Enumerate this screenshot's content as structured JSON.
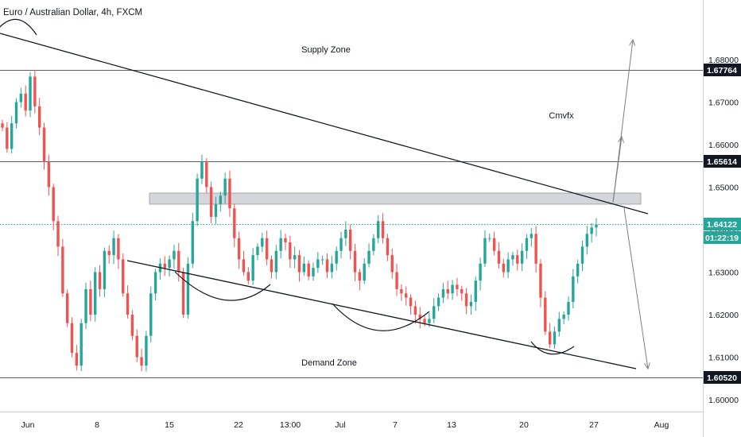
{
  "symbol_title": "Euro / Australian Dollar, 4h, FXCM",
  "annotations": {
    "supply_zone": "Supply Zone",
    "demand_zone": "Demand Zone",
    "author": "Cmvfx"
  },
  "colors": {
    "up": "#26a69a",
    "down": "#ef5350",
    "current_price": "#26a69a",
    "line": "#131722",
    "level_tag_bg": "#131722",
    "zone_fill": "#b2b5be"
  },
  "chart_data": {
    "type": "candlestick",
    "y_axis": {
      "range": [
        1.594,
        1.685
      ],
      "ticks": [
        "1.60000",
        "1.61000",
        "1.62000",
        "1.63000",
        "1.64000",
        "1.65000",
        "1.66000",
        "1.67000",
        "1.68000"
      ]
    },
    "x_axis": {
      "ticks": [
        "Jun",
        "8",
        "15",
        "22",
        "13:00",
        "Jul",
        "7",
        "13",
        "20",
        "27",
        "Aug"
      ]
    },
    "levels": [
      {
        "label": "1.67764",
        "value": 1.67764
      },
      {
        "label": "1.65614",
        "value": 1.65614
      },
      {
        "label": "1.60520",
        "value": 1.6052
      }
    ],
    "current_price": {
      "label": "1.64122",
      "value": 1.64122,
      "countdown": "01:22:19"
    },
    "zone": {
      "from": 1.641,
      "to": 1.6425
    },
    "series": [
      {
        "values": [
          1.664,
          1.659,
          1.665,
          1.67,
          1.672,
          1.668,
          1.676,
          1.669,
          1.664,
          1.656,
          1.65,
          1.642,
          1.636,
          1.625,
          1.618,
          1.611,
          1.608,
          1.618,
          1.626,
          1.62,
          1.63,
          1.626,
          1.635,
          1.634,
          1.638,
          1.633,
          1.625,
          1.62,
          1.615,
          1.61,
          1.608,
          1.615,
          1.625,
          1.63,
          1.632,
          1.631,
          1.633,
          1.635,
          1.63,
          1.62,
          1.632,
          1.642,
          1.652,
          1.656,
          1.65,
          1.643,
          1.646,
          1.648,
          1.652,
          1.645,
          1.638,
          1.633,
          1.63,
          1.628,
          1.634,
          1.636,
          1.638,
          1.633,
          1.63,
          1.635,
          1.638,
          1.637,
          1.633,
          1.634,
          1.63,
          1.632,
          1.629,
          1.631,
          1.633,
          1.633,
          1.63,
          1.632,
          1.635,
          1.638,
          1.64,
          1.635,
          1.63,
          1.628,
          1.632,
          1.635,
          1.638,
          1.642,
          1.638,
          1.634,
          1.63,
          1.626,
          1.625,
          1.624,
          1.622,
          1.62,
          1.619,
          1.618,
          1.619,
          1.622,
          1.624,
          1.626,
          1.625,
          1.627,
          1.626,
          1.625,
          1.622,
          1.623,
          1.628,
          1.632,
          1.638,
          1.638,
          1.635,
          1.632,
          1.63,
          1.633,
          1.634,
          1.632,
          1.635,
          1.638,
          1.639,
          1.632,
          1.624,
          1.616,
          1.613,
          1.616,
          1.619,
          1.62,
          1.623,
          1.629,
          1.632,
          1.636,
          1.639,
          1.6405,
          1.6412
        ]
      }
    ]
  }
}
